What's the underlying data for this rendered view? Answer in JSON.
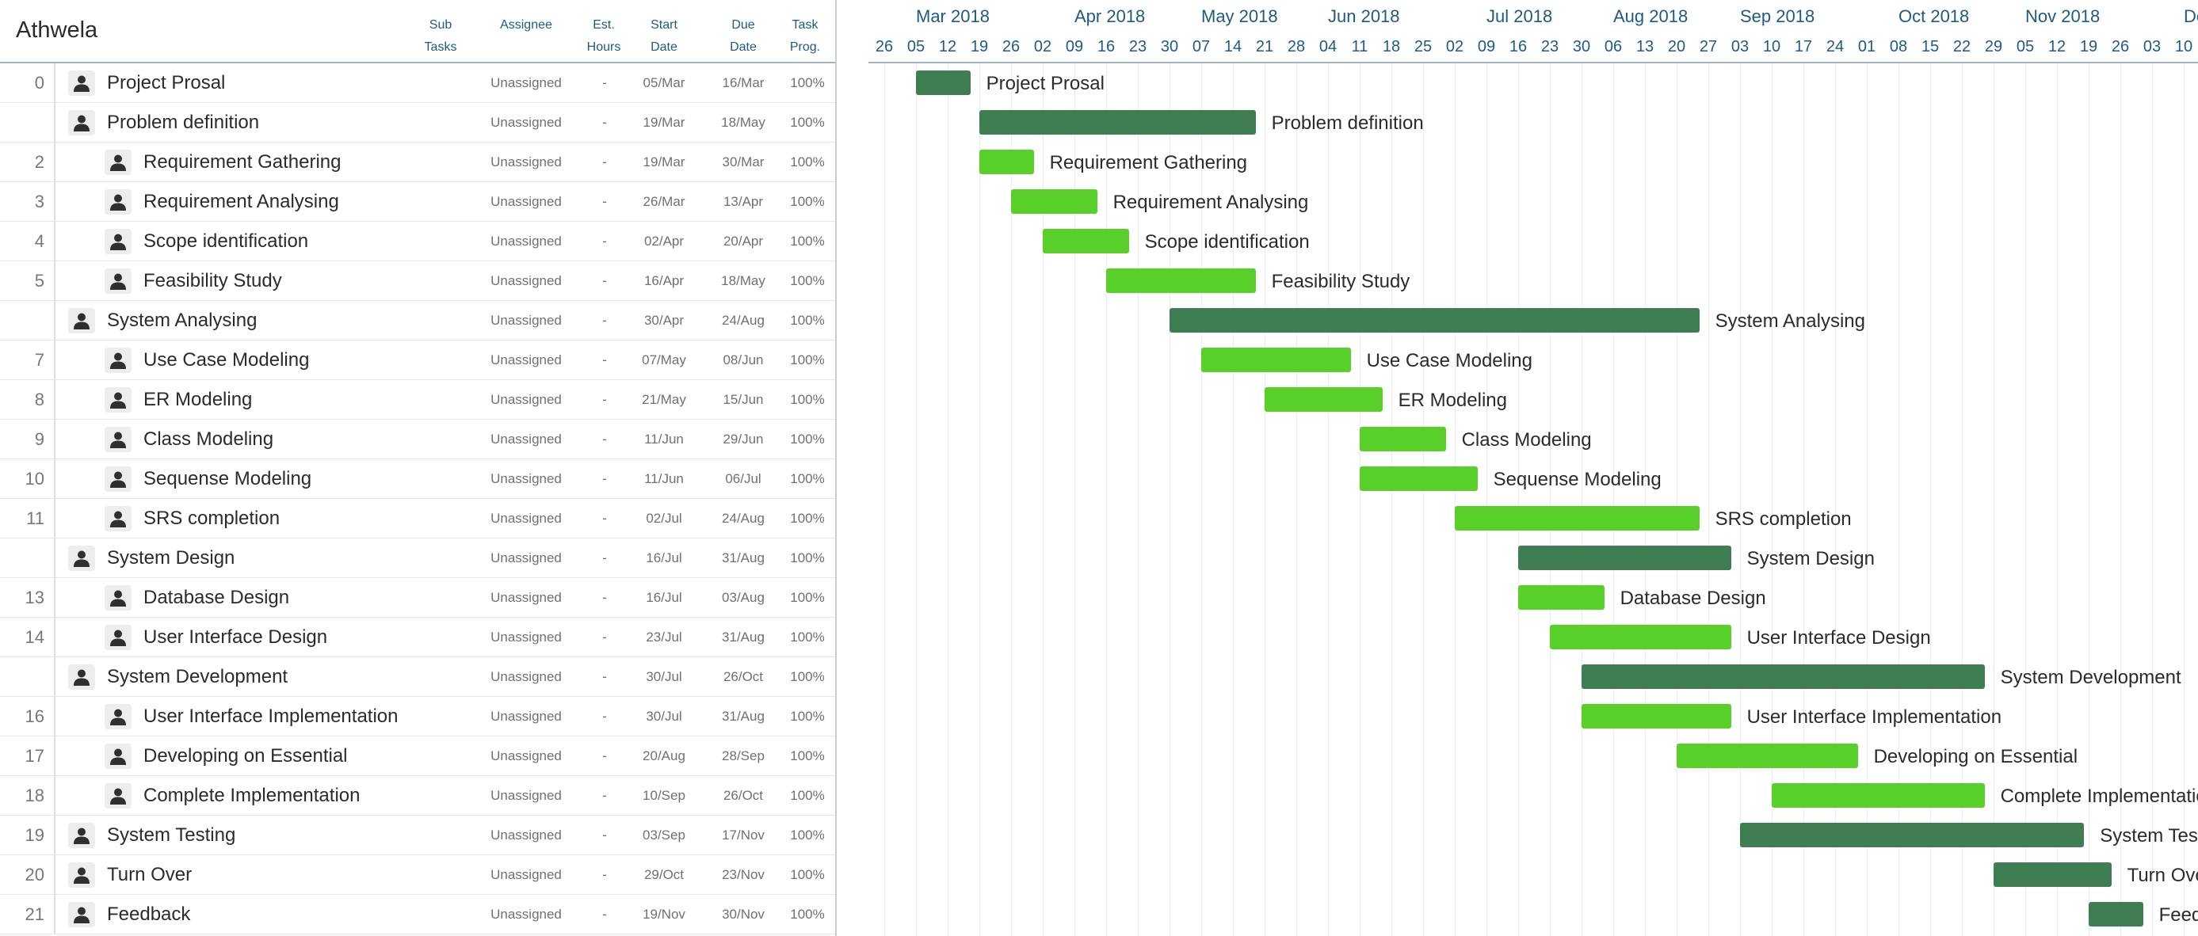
{
  "project": {
    "title": "Athwela"
  },
  "columns": {
    "subtasks": [
      "Sub",
      "Tasks"
    ],
    "assignee": [
      "Assignee"
    ],
    "est_hours": [
      "Est.",
      "Hours"
    ],
    "start_date": [
      "Start",
      "Date"
    ],
    "due_date": [
      "Due",
      "Date"
    ],
    "task_progress": [
      "Task",
      "Prog."
    ]
  },
  "timeline": {
    "months": [
      "Mar 2018",
      "Apr 2018",
      "May 2018",
      "Jun 2018",
      "Jul 2018",
      "Aug 2018",
      "Sep 2018",
      "Oct 2018",
      "Nov 2018",
      "De"
    ],
    "days": [
      "26",
      "05",
      "12",
      "19",
      "26",
      "02",
      "09",
      "16",
      "23",
      "30",
      "07",
      "14",
      "21",
      "28",
      "04",
      "11",
      "18",
      "25",
      "02",
      "09",
      "16",
      "23",
      "30",
      "06",
      "13",
      "20",
      "27",
      "03",
      "10",
      "17",
      "24",
      "01",
      "08",
      "15",
      "22",
      "29",
      "05",
      "12",
      "19",
      "26",
      "03",
      "10"
    ]
  },
  "tasks": [
    {
      "num": "0",
      "name": "Project Prosal",
      "level": 0,
      "parent": true,
      "assignee": "Unassigned",
      "hours": "-",
      "start": "05/Mar",
      "due": "16/Mar",
      "progress": "100%",
      "bar_start": "2018-03-05",
      "bar_end": "2018-03-16"
    },
    {
      "num": "",
      "name": "Problem definition",
      "level": 0,
      "parent": true,
      "assignee": "Unassigned",
      "hours": "-",
      "start": "19/Mar",
      "due": "18/May",
      "progress": "100%",
      "bar_start": "2018-03-19",
      "bar_end": "2018-05-18"
    },
    {
      "num": "2",
      "name": "Requirement Gathering",
      "level": 1,
      "parent": false,
      "assignee": "Unassigned",
      "hours": "-",
      "start": "19/Mar",
      "due": "30/Mar",
      "progress": "100%",
      "bar_start": "2018-03-19",
      "bar_end": "2018-03-30"
    },
    {
      "num": "3",
      "name": "Requirement Analysing",
      "level": 1,
      "parent": false,
      "assignee": "Unassigned",
      "hours": "-",
      "start": "26/Mar",
      "due": "13/Apr",
      "progress": "100%",
      "bar_start": "2018-03-26",
      "bar_end": "2018-04-13"
    },
    {
      "num": "4",
      "name": "Scope identification",
      "level": 1,
      "parent": false,
      "assignee": "Unassigned",
      "hours": "-",
      "start": "02/Apr",
      "due": "20/Apr",
      "progress": "100%",
      "bar_start": "2018-04-02",
      "bar_end": "2018-04-20"
    },
    {
      "num": "5",
      "name": "Feasibility Study",
      "level": 1,
      "parent": false,
      "assignee": "Unassigned",
      "hours": "-",
      "start": "16/Apr",
      "due": "18/May",
      "progress": "100%",
      "bar_start": "2018-04-16",
      "bar_end": "2018-05-18"
    },
    {
      "num": "",
      "name": "System Analysing",
      "level": 0,
      "parent": true,
      "assignee": "Unassigned",
      "hours": "-",
      "start": "30/Apr",
      "due": "24/Aug",
      "progress": "100%",
      "bar_start": "2018-04-30",
      "bar_end": "2018-08-24"
    },
    {
      "num": "7",
      "name": "Use Case Modeling",
      "level": 1,
      "parent": false,
      "assignee": "Unassigned",
      "hours": "-",
      "start": "07/May",
      "due": "08/Jun",
      "progress": "100%",
      "bar_start": "2018-05-07",
      "bar_end": "2018-06-08"
    },
    {
      "num": "8",
      "name": "ER Modeling",
      "level": 1,
      "parent": false,
      "assignee": "Unassigned",
      "hours": "-",
      "start": "21/May",
      "due": "15/Jun",
      "progress": "100%",
      "bar_start": "2018-05-21",
      "bar_end": "2018-06-15"
    },
    {
      "num": "9",
      "name": "Class Modeling",
      "level": 1,
      "parent": false,
      "assignee": "Unassigned",
      "hours": "-",
      "start": "11/Jun",
      "due": "29/Jun",
      "progress": "100%",
      "bar_start": "2018-06-11",
      "bar_end": "2018-06-29"
    },
    {
      "num": "10",
      "name": "Sequense Modeling",
      "level": 1,
      "parent": false,
      "assignee": "Unassigned",
      "hours": "-",
      "start": "11/Jun",
      "due": "06/Jul",
      "progress": "100%",
      "bar_start": "2018-06-11",
      "bar_end": "2018-07-06"
    },
    {
      "num": "11",
      "name": "SRS completion",
      "level": 1,
      "parent": false,
      "assignee": "Unassigned",
      "hours": "-",
      "start": "02/Jul",
      "due": "24/Aug",
      "progress": "100%",
      "bar_start": "2018-07-02",
      "bar_end": "2018-08-24"
    },
    {
      "num": "",
      "name": "System Design",
      "level": 0,
      "parent": true,
      "assignee": "Unassigned",
      "hours": "-",
      "start": "16/Jul",
      "due": "31/Aug",
      "progress": "100%",
      "bar_start": "2018-07-16",
      "bar_end": "2018-08-31"
    },
    {
      "num": "13",
      "name": "Database Design",
      "level": 1,
      "parent": false,
      "assignee": "Unassigned",
      "hours": "-",
      "start": "16/Jul",
      "due": "03/Aug",
      "progress": "100%",
      "bar_start": "2018-07-16",
      "bar_end": "2018-08-03"
    },
    {
      "num": "14",
      "name": "User Interface Design",
      "level": 1,
      "parent": false,
      "assignee": "Unassigned",
      "hours": "-",
      "start": "23/Jul",
      "due": "31/Aug",
      "progress": "100%",
      "bar_start": "2018-07-23",
      "bar_end": "2018-08-31"
    },
    {
      "num": "",
      "name": "System Development",
      "level": 0,
      "parent": true,
      "assignee": "Unassigned",
      "hours": "-",
      "start": "30/Jul",
      "due": "26/Oct",
      "progress": "100%",
      "bar_start": "2018-07-30",
      "bar_end": "2018-10-26"
    },
    {
      "num": "16",
      "name": "User Interface Implementation",
      "level": 1,
      "parent": false,
      "assignee": "Unassigned",
      "hours": "-",
      "start": "30/Jul",
      "due": "31/Aug",
      "progress": "100%",
      "bar_start": "2018-07-30",
      "bar_end": "2018-08-31"
    },
    {
      "num": "17",
      "name": "Developing on Essential",
      "level": 1,
      "parent": false,
      "assignee": "Unassigned",
      "hours": "-",
      "start": "20/Aug",
      "due": "28/Sep",
      "progress": "100%",
      "bar_start": "2018-08-20",
      "bar_end": "2018-09-28"
    },
    {
      "num": "18",
      "name": "Complete Implementation",
      "level": 1,
      "parent": false,
      "assignee": "Unassigned",
      "hours": "-",
      "start": "10/Sep",
      "due": "26/Oct",
      "progress": "100%",
      "bar_start": "2018-09-10",
      "bar_end": "2018-10-26"
    },
    {
      "num": "19",
      "name": "System Testing",
      "level": 0,
      "parent": true,
      "assignee": "Unassigned",
      "hours": "-",
      "start": "03/Sep",
      "due": "17/Nov",
      "progress": "100%",
      "bar_start": "2018-09-03",
      "bar_end": "2018-11-17"
    },
    {
      "num": "20",
      "name": "Turn Over",
      "level": 0,
      "parent": true,
      "assignee": "Unassigned",
      "hours": "-",
      "start": "29/Oct",
      "due": "23/Nov",
      "progress": "100%",
      "bar_start": "2018-10-29",
      "bar_end": "2018-11-23"
    },
    {
      "num": "21",
      "name": "Feedback",
      "level": 0,
      "parent": true,
      "assignee": "Unassigned",
      "hours": "-",
      "start": "19/Nov",
      "due": "30/Nov",
      "progress": "100%",
      "bar_start": "2018-11-19",
      "bar_end": "2018-11-30"
    }
  ],
  "icons": {
    "avatar": "user-avatar-icon"
  },
  "colors": {
    "parent_bar": "#3f7e52",
    "child_bar": "#59cf2a",
    "header_text": "#1f5a84"
  }
}
